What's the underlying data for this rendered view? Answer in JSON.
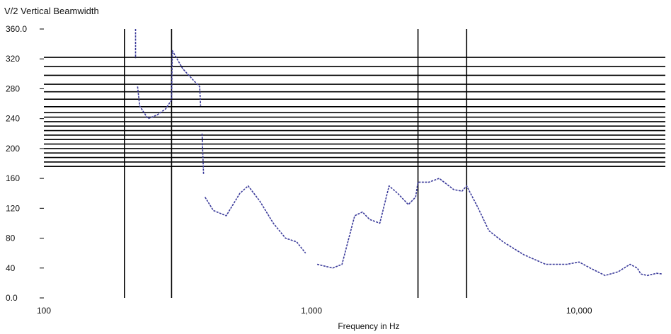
{
  "chart_data": {
    "type": "line",
    "title": "V/2 Vertical Beamwidth",
    "xlabel": "Frequency in Hz",
    "ylabel": "",
    "x_scale": "log",
    "xlim": [
      100,
      21000
    ],
    "ylim": [
      0,
      360
    ],
    "grid": false,
    "x_tick_labels": [
      {
        "value": 100,
        "label": "100"
      },
      {
        "value": 1000,
        "label": "1,000"
      },
      {
        "value": 10000,
        "label": "10,000"
      }
    ],
    "y_tick_labels": [
      {
        "value": 0,
        "label": "0.0"
      },
      {
        "value": 40,
        "label": "40"
      },
      {
        "value": 80,
        "label": "80"
      },
      {
        "value": 120,
        "label": "120"
      },
      {
        "value": 160,
        "label": "160"
      },
      {
        "value": 200,
        "label": "200"
      },
      {
        "value": 240,
        "label": "240"
      },
      {
        "value": 280,
        "label": "280"
      },
      {
        "value": 320,
        "label": "320"
      },
      {
        "value": 360,
        "label": "360.0"
      }
    ],
    "vertical_lines_x": [
      200,
      300,
      2500,
      3800
    ],
    "horizontal_lines_y": [
      176,
      182,
      188,
      194,
      200,
      206,
      212,
      218,
      224,
      230,
      236,
      242,
      248,
      256,
      266,
      276,
      286,
      298,
      310,
      322
    ],
    "line_color": "#3a3a9a",
    "series": [
      {
        "name": "",
        "segments": [
          [
            {
              "x": 220,
              "y": 360
            },
            {
              "x": 220,
              "y": 321
            }
          ],
          [
            {
              "x": 224,
              "y": 283
            },
            {
              "x": 228,
              "y": 257
            },
            {
              "x": 245,
              "y": 240
            },
            {
              "x": 265,
              "y": 245
            },
            {
              "x": 285,
              "y": 253
            },
            {
              "x": 300,
              "y": 265
            },
            {
              "x": 302,
              "y": 331
            },
            {
              "x": 330,
              "y": 307
            },
            {
              "x": 365,
              "y": 290
            },
            {
              "x": 382,
              "y": 283
            },
            {
              "x": 385,
              "y": 257
            }
          ],
          [
            {
              "x": 390,
              "y": 220
            },
            {
              "x": 395,
              "y": 165
            }
          ],
          [
            {
              "x": 400,
              "y": 135
            },
            {
              "x": 430,
              "y": 117
            },
            {
              "x": 480,
              "y": 110
            },
            {
              "x": 540,
              "y": 140
            },
            {
              "x": 580,
              "y": 150
            },
            {
              "x": 640,
              "y": 130
            },
            {
              "x": 720,
              "y": 100
            },
            {
              "x": 800,
              "y": 80
            },
            {
              "x": 880,
              "y": 75
            },
            {
              "x": 950,
              "y": 60
            }
          ],
          [
            {
              "x": 1050,
              "y": 45
            },
            {
              "x": 1200,
              "y": 40
            },
            {
              "x": 1300,
              "y": 45
            },
            {
              "x": 1450,
              "y": 110
            },
            {
              "x": 1550,
              "y": 115
            },
            {
              "x": 1650,
              "y": 105
            },
            {
              "x": 1800,
              "y": 100
            },
            {
              "x": 1950,
              "y": 150
            },
            {
              "x": 2100,
              "y": 140
            },
            {
              "x": 2300,
              "y": 125
            },
            {
              "x": 2450,
              "y": 135
            },
            {
              "x": 2500,
              "y": 155
            },
            {
              "x": 2750,
              "y": 155
            },
            {
              "x": 3000,
              "y": 160
            },
            {
              "x": 3400,
              "y": 145
            },
            {
              "x": 3650,
              "y": 143
            },
            {
              "x": 3800,
              "y": 150
            },
            {
              "x": 4200,
              "y": 120
            },
            {
              "x": 4600,
              "y": 90
            },
            {
              "x": 5200,
              "y": 75
            },
            {
              "x": 6200,
              "y": 58
            },
            {
              "x": 7500,
              "y": 45
            },
            {
              "x": 9000,
              "y": 45
            },
            {
              "x": 10000,
              "y": 48
            },
            {
              "x": 11000,
              "y": 40
            },
            {
              "x": 12500,
              "y": 30
            },
            {
              "x": 14000,
              "y": 35
            },
            {
              "x": 15500,
              "y": 45
            },
            {
              "x": 16500,
              "y": 40
            },
            {
              "x": 17000,
              "y": 32
            },
            {
              "x": 18000,
              "y": 30
            },
            {
              "x": 19500,
              "y": 33
            },
            {
              "x": 20500,
              "y": 32
            }
          ]
        ]
      }
    ]
  }
}
